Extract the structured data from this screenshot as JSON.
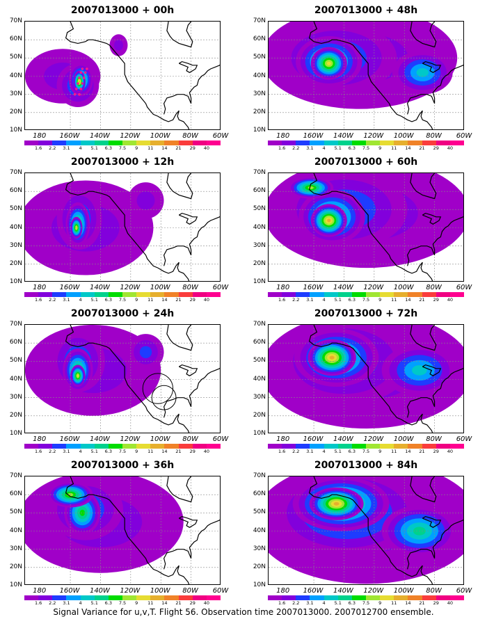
{
  "caption": "Signal Variance for u,v,T. Flight 56. Observation time 2007013000. 2007012700 ensemble.",
  "map_extent": {
    "lon_min": 170,
    "lon_max": 300,
    "lat_min": 10,
    "lat_max": 70
  },
  "x_tick_labels": [
    "180",
    "160W",
    "140W",
    "120W",
    "100W",
    "80W",
    "60W"
  ],
  "y_tick_labels": [
    "70N",
    "60N",
    "50N",
    "40N",
    "30N",
    "20N",
    "10N"
  ],
  "colorbar": {
    "labels": [
      "1.6",
      "2.2",
      "3.1",
      "4",
      "5.1",
      "6.3",
      "7.5",
      "9",
      "11",
      "14",
      "21",
      "29",
      "40"
    ],
    "colors": [
      "#a000c8",
      "#8200dc",
      "#1e3cff",
      "#00a0ff",
      "#00c8c8",
      "#00d28c",
      "#00dc00",
      "#a0e632",
      "#e6dc32",
      "#e6af2d",
      "#f08228",
      "#fa3c3c",
      "#f00082",
      "#ff0090"
    ]
  },
  "panels": [
    {
      "title": "2007013000 + 00h",
      "blobs": [
        {
          "lon": 195,
          "lat": 40,
          "rx": 25,
          "ry": 15,
          "level": 1
        },
        {
          "lon": 205,
          "lat": 35,
          "rx": 14,
          "ry": 12,
          "level": 3
        },
        {
          "lon": 207,
          "lat": 38,
          "rx": 8,
          "ry": 9,
          "level": 6
        },
        {
          "lon": 206,
          "lat": 37,
          "rx": 4,
          "ry": 6,
          "level": 9
        },
        {
          "lon": 232,
          "lat": 57,
          "rx": 6,
          "ry": 6,
          "level": 1
        }
      ],
      "markers": [
        {
          "lon": 203,
          "lat": 30
        },
        {
          "lon": 204,
          "lat": 33
        },
        {
          "lon": 205,
          "lat": 36
        },
        {
          "lon": 206,
          "lat": 39
        },
        {
          "lon": 207,
          "lat": 42
        },
        {
          "lon": 208,
          "lat": 44
        },
        {
          "lon": 206,
          "lat": 30
        },
        {
          "lon": 207,
          "lat": 33
        },
        {
          "lon": 208,
          "lat": 36
        },
        {
          "lon": 209,
          "lat": 39
        },
        {
          "lon": 210,
          "lat": 42
        },
        {
          "lon": 211,
          "lat": 44
        }
      ],
      "circles": []
    },
    {
      "title": "2007013000 + 48h",
      "blobs": [
        {
          "lon": 230,
          "lat": 50,
          "rx": 65,
          "ry": 28,
          "level": 1
        },
        {
          "lon": 215,
          "lat": 50,
          "rx": 40,
          "ry": 20,
          "level": 3
        },
        {
          "lon": 210,
          "lat": 48,
          "rx": 22,
          "ry": 14,
          "level": 6
        },
        {
          "lon": 210,
          "lat": 47,
          "rx": 12,
          "ry": 9,
          "level": 8
        },
        {
          "lon": 272,
          "lat": 42,
          "rx": 20,
          "ry": 12,
          "level": 4
        }
      ],
      "markers": [],
      "circles": []
    },
    {
      "title": "2007013000 + 12h",
      "blobs": [
        {
          "lon": 210,
          "lat": 40,
          "rx": 45,
          "ry": 26,
          "level": 1
        },
        {
          "lon": 206,
          "lat": 45,
          "rx": 15,
          "ry": 17,
          "level": 3
        },
        {
          "lon": 205,
          "lat": 42,
          "rx": 8,
          "ry": 12,
          "level": 6
        },
        {
          "lon": 204,
          "lat": 40,
          "rx": 4,
          "ry": 6,
          "level": 8
        },
        {
          "lon": 250,
          "lat": 55,
          "rx": 12,
          "ry": 10,
          "level": 1
        }
      ],
      "markers": [],
      "circles": []
    },
    {
      "title": "2007013000 + 60h",
      "blobs": [
        {
          "lon": 235,
          "lat": 48,
          "rx": 68,
          "ry": 30,
          "level": 1
        },
        {
          "lon": 220,
          "lat": 50,
          "rx": 42,
          "ry": 22,
          "level": 3
        },
        {
          "lon": 212,
          "lat": 46,
          "rx": 22,
          "ry": 15,
          "level": 6
        },
        {
          "lon": 210,
          "lat": 44,
          "rx": 12,
          "ry": 9,
          "level": 9
        },
        {
          "lon": 198,
          "lat": 62,
          "rx": 15,
          "ry": 6,
          "level": 7
        }
      ],
      "markers": [],
      "circles": []
    },
    {
      "title": "2007013000 + 24h",
      "blobs": [
        {
          "lon": 215,
          "lat": 45,
          "rx": 45,
          "ry": 25,
          "level": 1
        },
        {
          "lon": 205,
          "lat": 50,
          "rx": 18,
          "ry": 17,
          "level": 3
        },
        {
          "lon": 205,
          "lat": 45,
          "rx": 10,
          "ry": 12,
          "level": 6
        },
        {
          "lon": 205,
          "lat": 42,
          "rx": 5,
          "ry": 6,
          "level": 8
        },
        {
          "lon": 250,
          "lat": 55,
          "rx": 12,
          "ry": 10,
          "level": 2
        }
      ],
      "markers": [],
      "circles": [
        {
          "lon": 258,
          "lat": 35,
          "r": 10
        },
        {
          "lon": 262,
          "lat": 30,
          "r": 8
        }
      ]
    },
    {
      "title": "2007013000 + 72h",
      "blobs": [
        {
          "lon": 235,
          "lat": 45,
          "rx": 70,
          "ry": 32,
          "level": 1
        },
        {
          "lon": 220,
          "lat": 50,
          "rx": 45,
          "ry": 24,
          "level": 3
        },
        {
          "lon": 215,
          "lat": 52,
          "rx": 28,
          "ry": 16,
          "level": 6
        },
        {
          "lon": 212,
          "lat": 52,
          "rx": 16,
          "ry": 10,
          "level": 9
        },
        {
          "lon": 270,
          "lat": 45,
          "rx": 25,
          "ry": 14,
          "level": 4
        }
      ],
      "markers": [],
      "circles": []
    },
    {
      "title": "2007013000 + 36h",
      "blobs": [
        {
          "lon": 220,
          "lat": 45,
          "rx": 55,
          "ry": 28,
          "level": 1
        },
        {
          "lon": 210,
          "lat": 52,
          "rx": 25,
          "ry": 17,
          "level": 3
        },
        {
          "lon": 208,
          "lat": 50,
          "rx": 12,
          "ry": 12,
          "level": 6
        },
        {
          "lon": 200,
          "lat": 60,
          "rx": 15,
          "ry": 7,
          "level": 7
        }
      ],
      "markers": [],
      "circles": []
    },
    {
      "title": "2007013000 + 84h",
      "blobs": [
        {
          "lon": 235,
          "lat": 45,
          "rx": 75,
          "ry": 34,
          "level": 1
        },
        {
          "lon": 222,
          "lat": 50,
          "rx": 50,
          "ry": 24,
          "level": 4
        },
        {
          "lon": 218,
          "lat": 55,
          "rx": 32,
          "ry": 15,
          "level": 7
        },
        {
          "lon": 215,
          "lat": 55,
          "rx": 18,
          "ry": 9,
          "level": 9
        },
        {
          "lon": 270,
          "lat": 40,
          "rx": 25,
          "ry": 14,
          "level": 5
        }
      ],
      "markers": [],
      "circles": []
    }
  ]
}
